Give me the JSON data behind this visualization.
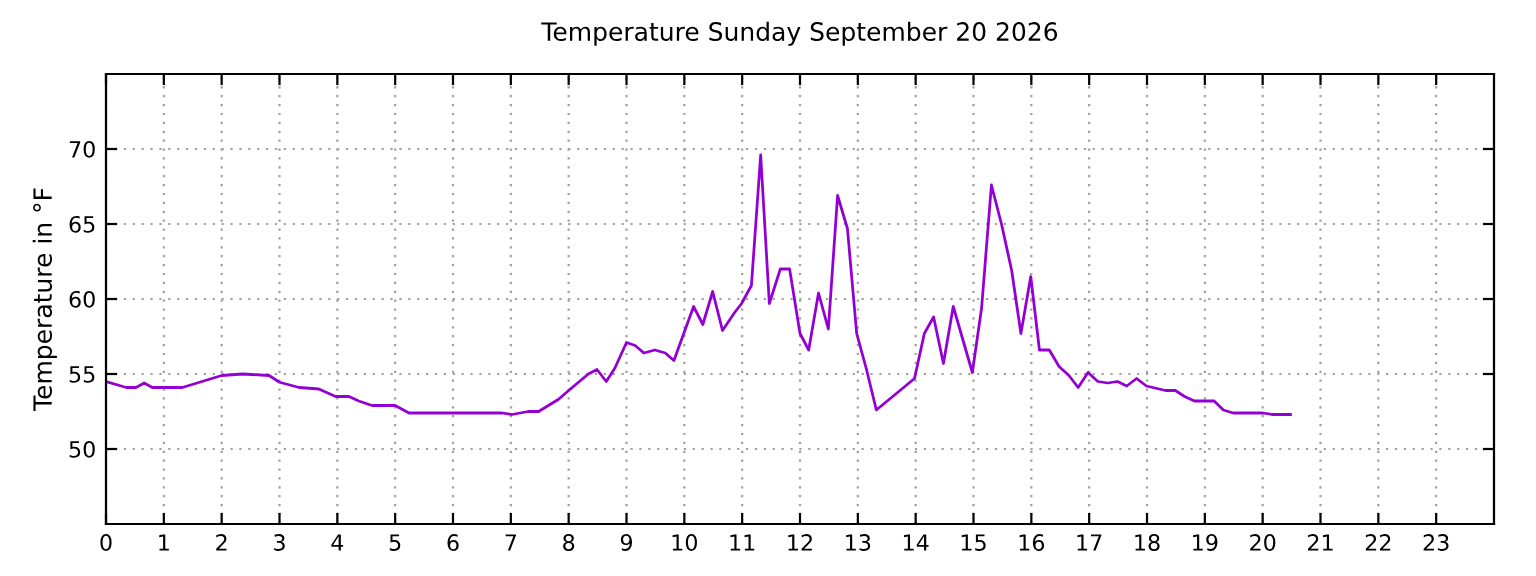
{
  "chart_data": {
    "type": "line",
    "title": "Temperature Sunday September 20 2026",
    "ylabel": "Temperature in °F",
    "x": [
      0,
      0.35,
      0.52,
      0.66,
      0.8,
      1.32,
      2.0,
      2.36,
      2.82,
      3.0,
      3.34,
      3.68,
      3.97,
      4.2,
      4.37,
      4.6,
      5.0,
      5.24,
      6.85,
      7.02,
      7.3,
      7.48,
      7.82,
      8.0,
      8.34,
      8.49,
      8.65,
      8.8,
      9.0,
      9.15,
      9.3,
      9.49,
      9.67,
      9.82,
      10.16,
      10.32,
      10.49,
      10.66,
      10.87,
      10.99,
      11.16,
      11.32,
      11.47,
      11.66,
      11.82,
      12.0,
      12.15,
      12.32,
      12.49,
      12.65,
      12.82,
      12.98,
      13.15,
      13.32,
      13.98,
      14.15,
      14.31,
      14.48,
      14.65,
      14.98,
      15.14,
      15.31,
      15.49,
      15.66,
      15.82,
      15.99,
      16.14,
      16.31,
      16.48,
      16.65,
      16.81,
      16.98,
      17.15,
      17.32,
      17.49,
      17.65,
      17.82,
      17.99,
      18.32,
      18.49,
      18.65,
      18.82,
      19.16,
      19.32,
      19.49,
      20.0,
      20.16,
      20.48
    ],
    "series": [
      {
        "color": "#9400d3",
        "values": [
          54.5,
          54.1,
          54.1,
          54.4,
          54.1,
          54.1,
          54.9,
          55.0,
          54.9,
          54.45,
          54.1,
          54.0,
          53.5,
          53.5,
          53.2,
          52.9,
          52.9,
          52.4,
          52.4,
          52.3,
          52.5,
          52.5,
          53.3,
          53.9,
          55.0,
          55.3,
          54.5,
          55.4,
          57.1,
          56.9,
          56.4,
          56.6,
          56.4,
          55.9,
          59.5,
          58.3,
          60.5,
          57.9,
          59.1,
          59.7,
          60.9,
          69.6,
          59.7,
          62.0,
          62.0,
          57.7,
          56.6,
          60.4,
          58.0,
          66.9,
          64.7,
          57.7,
          55.3,
          52.6,
          54.7,
          57.7,
          58.8,
          55.7,
          59.5,
          55.1,
          59.4,
          67.6,
          64.9,
          61.9,
          57.7,
          61.5,
          56.6,
          56.6,
          55.5,
          54.9,
          54.1,
          55.1,
          54.5,
          54.4,
          54.5,
          54.2,
          54.7,
          54.2,
          53.9,
          53.9,
          53.5,
          53.2,
          53.2,
          52.6,
          52.4,
          52.4,
          52.3,
          52.3
        ]
      }
    ],
    "xlim": [
      0,
      24
    ],
    "xticks": [
      0,
      1,
      2,
      3,
      4,
      5,
      6,
      7,
      8,
      9,
      10,
      11,
      12,
      13,
      14,
      15,
      16,
      17,
      18,
      19,
      20,
      21,
      22,
      23
    ],
    "ylim": [
      45,
      75
    ],
    "yticks": [
      50,
      55,
      60,
      65,
      70
    ],
    "grid": true,
    "marker": "none",
    "line_style": "solid"
  }
}
